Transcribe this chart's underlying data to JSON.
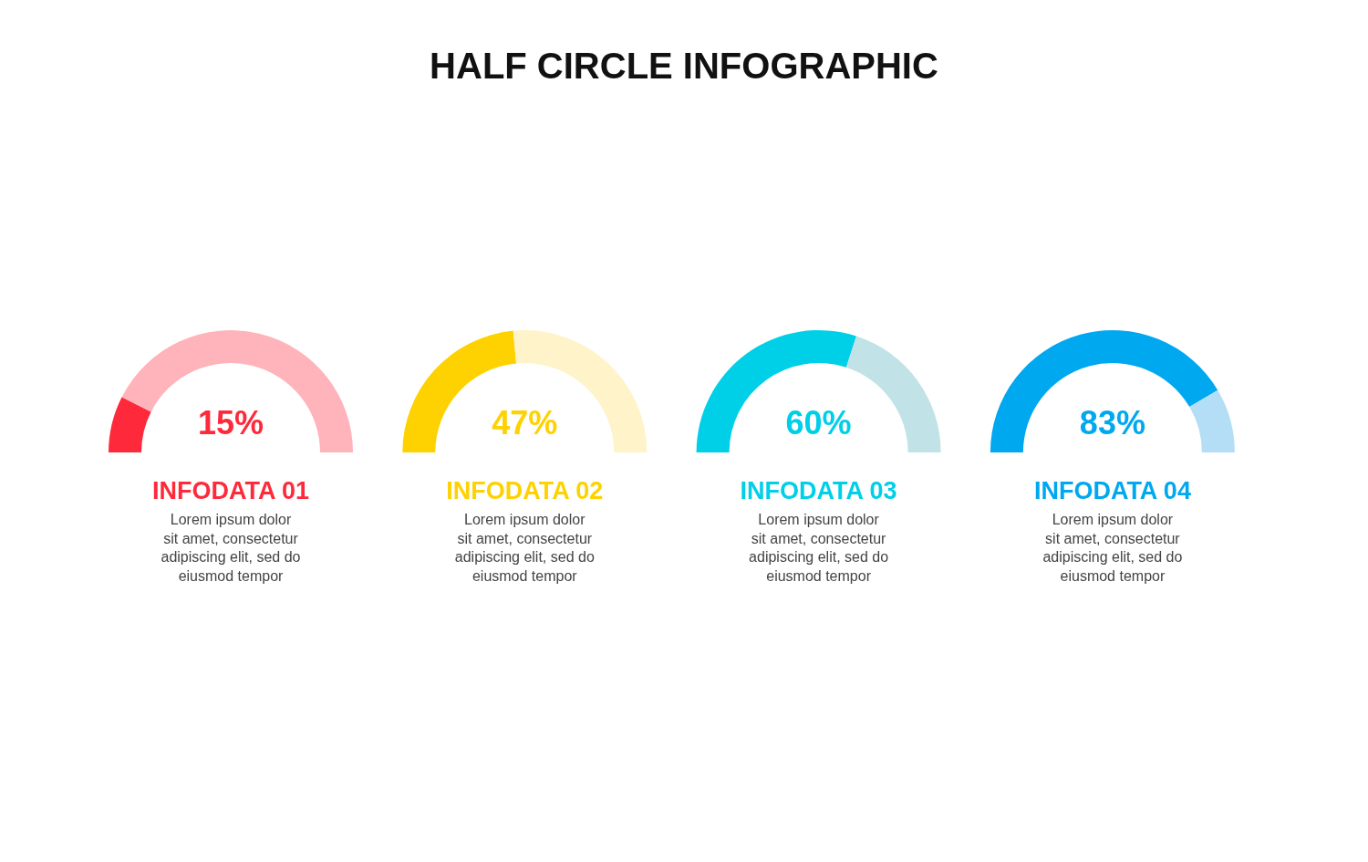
{
  "chart_data": [
    {
      "type": "other",
      "title": "HALF CIRCLE INFOGRAPHIC"
    },
    {
      "type": "donut",
      "title": "INFODATA 01",
      "categories": [
        null,
        null
      ],
      "values": [
        15,
        85
      ],
      "colors": [
        "#fe2a3b",
        "#ffb3ba"
      ],
      "annotations": [
        "15%",
        "Lorem ipsum dolor\nsit amet, consectetur\nadipiscing elit, sed do\neiusmod tempor"
      ]
    },
    {
      "type": "donut",
      "title": "INFODATA 02",
      "categories": [
        null,
        null
      ],
      "values": [
        47,
        53
      ],
      "colors": [
        "#fed200",
        "#fff3c9"
      ],
      "annotations": [
        "47%",
        "Lorem ipsum dolor\nsit amet, consectetur\nadipiscing elit, sed do\neiusmod tempor"
      ]
    },
    {
      "type": "donut",
      "title": "INFODATA 03",
      "categories": [
        null,
        null
      ],
      "values": [
        60,
        40
      ],
      "colors": [
        "#00cfe8",
        "#c1e2e6"
      ],
      "annotations": [
        "60%",
        "Lorem ipsum dolor\nsit amet, consectetur\nadipiscing elit, sed do\neiusmod tempor"
      ]
    },
    {
      "type": "donut",
      "title": "INFODATA 04",
      "categories": [
        null,
        null
      ],
      "values": [
        83,
        17
      ],
      "colors": [
        "#00a8f0",
        "#b3def5"
      ],
      "annotations": [
        "83%",
        "Lorem ipsum dolor\nsit amet, consectetur\nadipiscing elit, sed do\neiusmod tempor"
      ]
    }
  ]
}
